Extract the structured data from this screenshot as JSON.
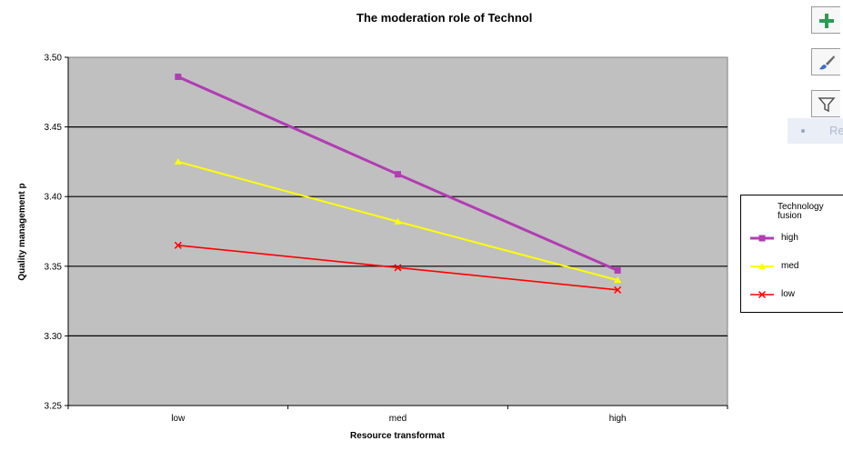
{
  "chart_data": {
    "type": "line",
    "title": "The moderation role of Technol",
    "xlabel": "Resource transformat",
    "ylabel": "Quality management p",
    "categories": [
      "low",
      "med",
      "high"
    ],
    "ylim": [
      3.25,
      3.5
    ],
    "yticks": [
      "3.25",
      "3.30",
      "3.35",
      "3.40",
      "3.45",
      "3.50"
    ],
    "grid": true,
    "legend_position": "right",
    "legend_title": "Technology fusion",
    "series": [
      {
        "name": "high",
        "values": [
          3.486,
          3.416,
          3.347
        ],
        "color": "#b23cb4",
        "marker": "square"
      },
      {
        "name": "med",
        "values": [
          3.425,
          3.382,
          3.34
        ],
        "color": "#ffff00",
        "marker": "triangle"
      },
      {
        "name": "low",
        "values": [
          3.365,
          3.349,
          3.333
        ],
        "color": "#ff0000",
        "marker": "x"
      }
    ]
  },
  "toolbar": {
    "buttons": [
      {
        "name": "add-chart-element-button",
        "icon": "plus-icon"
      },
      {
        "name": "chart-styles-button",
        "icon": "brush-icon"
      },
      {
        "name": "chart-filters-button",
        "icon": "filter-icon"
      }
    ],
    "tooltip_text": "Re"
  }
}
